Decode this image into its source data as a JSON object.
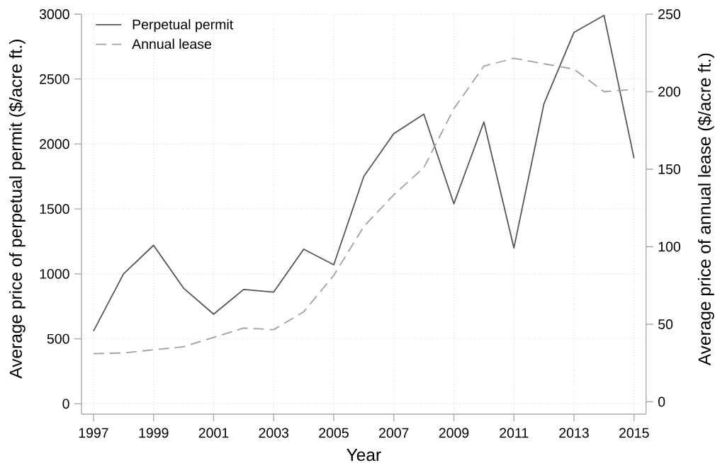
{
  "chart_data": {
    "type": "line",
    "xlabel": "Year",
    "ylabel": "Average price of perpetual permit ($/acre ft.)",
    "y2label": "Average price of annual lease ($/acre ft.)",
    "x": [
      1997,
      1998,
      1999,
      2000,
      2001,
      2002,
      2003,
      2004,
      2005,
      2006,
      2007,
      2008,
      2009,
      2010,
      2011,
      2012,
      2013,
      2014,
      2015
    ],
    "series": [
      {
        "name": "Perpetual permit",
        "color": "#555555",
        "line_style": "solid",
        "values": [
          560,
          1000,
          1220,
          890,
          690,
          880,
          860,
          1190,
          1070,
          1750,
          2080,
          2230,
          1540,
          2170,
          1200,
          2310,
          2860,
          2990,
          1890
        ]
      },
      {
        "name": "Annual lease",
        "color": "#a0a0a0",
        "line_style": "dashed",
        "axis": "y2",
        "values": [
          31,
          31.5,
          33.5,
          35.5,
          41.5,
          47.5,
          46.5,
          58,
          81.5,
          113,
          133.5,
          151,
          189,
          216.5,
          221.5,
          218,
          214.5,
          200,
          201.5
        ]
      }
    ],
    "xlim": [
      1996.6,
      2015.4
    ],
    "xticks": [
      1997,
      1999,
      2001,
      2003,
      2005,
      2007,
      2009,
      2011,
      2013,
      2015
    ],
    "ylim": [
      -80,
      3000
    ],
    "yticks": [
      0,
      500,
      1000,
      1500,
      2000,
      2500,
      3000
    ],
    "y2lim": [
      -8,
      250
    ],
    "y2ticks": [
      0,
      50,
      100,
      150,
      200,
      250
    ],
    "grid": true,
    "legend": "top left"
  }
}
